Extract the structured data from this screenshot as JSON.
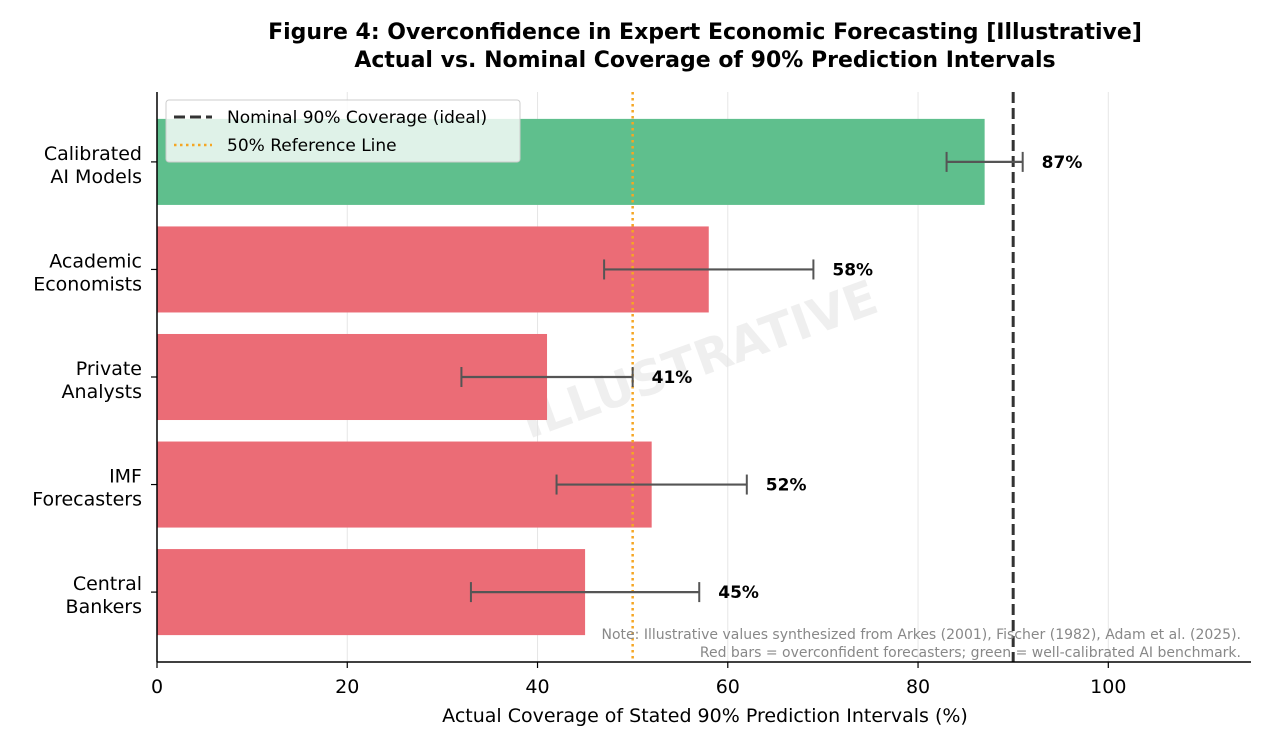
{
  "chart_data": {
    "type": "bar",
    "orientation": "horizontal",
    "title": "Figure 4: Overconfidence in Expert Economic Forecasting [Illustrative]",
    "subtitle": "Actual vs. Nominal Coverage of 90% Prediction Intervals",
    "xlabel": "Actual Coverage of Stated 90% Prediction Intervals (%)",
    "ylabel": "",
    "xlim": [
      0,
      115
    ],
    "xticks": [
      0,
      20,
      40,
      60,
      80,
      100
    ],
    "grid": "vertical",
    "categories": [
      [
        "Calibrated",
        "AI Models"
      ],
      [
        "Academic",
        "Economists"
      ],
      [
        "Private",
        "Analysts"
      ],
      [
        "IMF",
        "Forecasters"
      ],
      [
        "Central",
        "Bankers"
      ]
    ],
    "values": [
      87,
      58,
      41,
      52,
      45
    ],
    "error_low": [
      83,
      47,
      32,
      42,
      33
    ],
    "error_high": [
      91,
      69,
      50,
      62,
      57
    ],
    "value_labels": [
      "87%",
      "58%",
      "41%",
      "52%",
      "45%"
    ],
    "bar_colors": [
      "#5fbf8d",
      "#eb6c76",
      "#eb6c76",
      "#eb6c76",
      "#eb6c76"
    ],
    "reference_lines": [
      {
        "value": 90,
        "style": "dashed",
        "color": "#333333",
        "label": "Nominal 90% Coverage (ideal)"
      },
      {
        "value": 50,
        "style": "dotted",
        "color": "#f5a623",
        "label": "50% Reference Line"
      }
    ],
    "legend_position": "top-left",
    "watermark": "ILLUSTRATIVE",
    "note_lines": [
      "Note: Illustrative values synthesized from Arkes (2001), Fischer (1982), Adam et al. (2025).",
      "Red bars = overconfident forecasters; green = well-calibrated AI benchmark."
    ]
  }
}
